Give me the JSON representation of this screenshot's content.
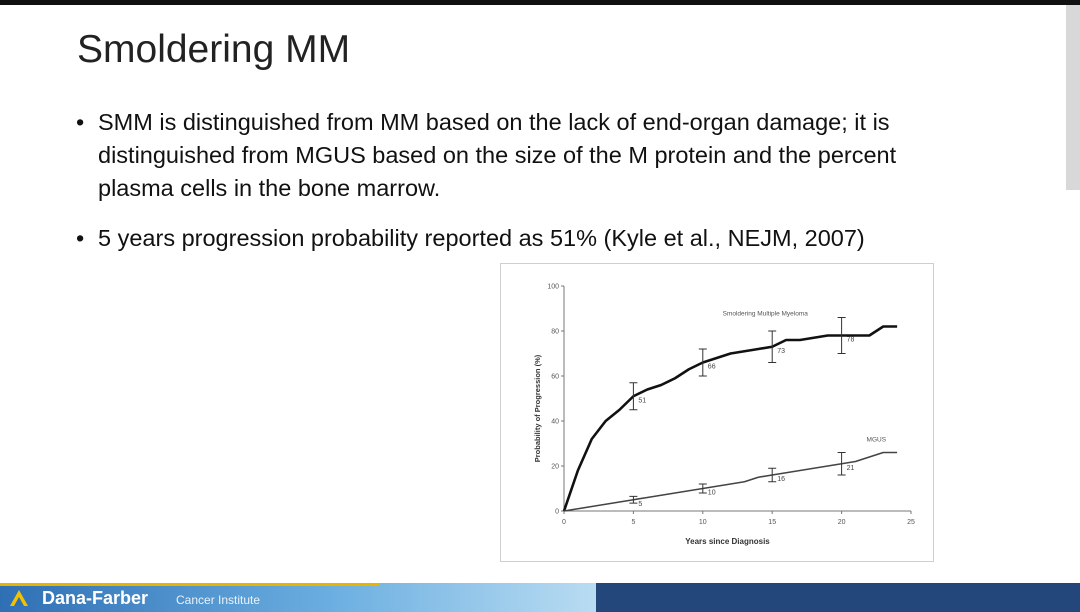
{
  "title": "Smoldering MM",
  "bullets": [
    "SMM is distinguished from MM based on the lack of end-organ damage; it is distinguished from MGUS based on the size of the M protein and the percent plasma cells in the bone marrow.",
    "5 years progression probability reported as 51% (Kyle et al., NEJM, 2007)"
  ],
  "footer": {
    "name": "Dana-Farber",
    "subtitle": "Cancer Institute"
  },
  "chart_data": {
    "type": "line",
    "x_label": "Years since Diagnosis",
    "y_label": "Probability of Progression (%)",
    "xlim": [
      0,
      25
    ],
    "xticks": [
      0,
      5,
      10,
      15,
      20,
      25
    ],
    "ylim": [
      0,
      100
    ],
    "yticks": [
      0,
      20,
      40,
      60,
      80,
      100
    ],
    "x": [
      0,
      1,
      2,
      3,
      4,
      5,
      6,
      7,
      8,
      9,
      10,
      11,
      12,
      13,
      14,
      15,
      16,
      17,
      18,
      19,
      20,
      21,
      22,
      23,
      24
    ],
    "series": [
      {
        "name": "Smoldering Multiple Myeloma",
        "color": "#111111",
        "values": [
          0,
          18,
          32,
          40,
          45,
          51,
          54,
          56,
          59,
          63,
          66,
          68,
          70,
          71,
          72,
          73,
          76,
          76,
          77,
          78,
          78,
          78,
          78,
          82,
          82
        ],
        "markers": {
          "x": [
            5,
            10,
            15,
            20
          ],
          "values": [
            51,
            66,
            73,
            78
          ],
          "errors": [
            6,
            6,
            7,
            8
          ]
        }
      },
      {
        "name": "MGUS",
        "color": "#444444",
        "values": [
          0,
          1,
          2,
          3,
          4,
          5,
          6,
          7,
          8,
          9,
          10,
          11,
          12,
          13,
          15,
          16,
          17,
          18,
          19,
          20,
          21,
          22,
          24,
          26,
          26
        ],
        "markers": {
          "x": [
            5,
            10,
            15,
            20
          ],
          "values": [
            5,
            10,
            16,
            21
          ],
          "errors": [
            1.5,
            2,
            3,
            5
          ]
        }
      }
    ]
  }
}
